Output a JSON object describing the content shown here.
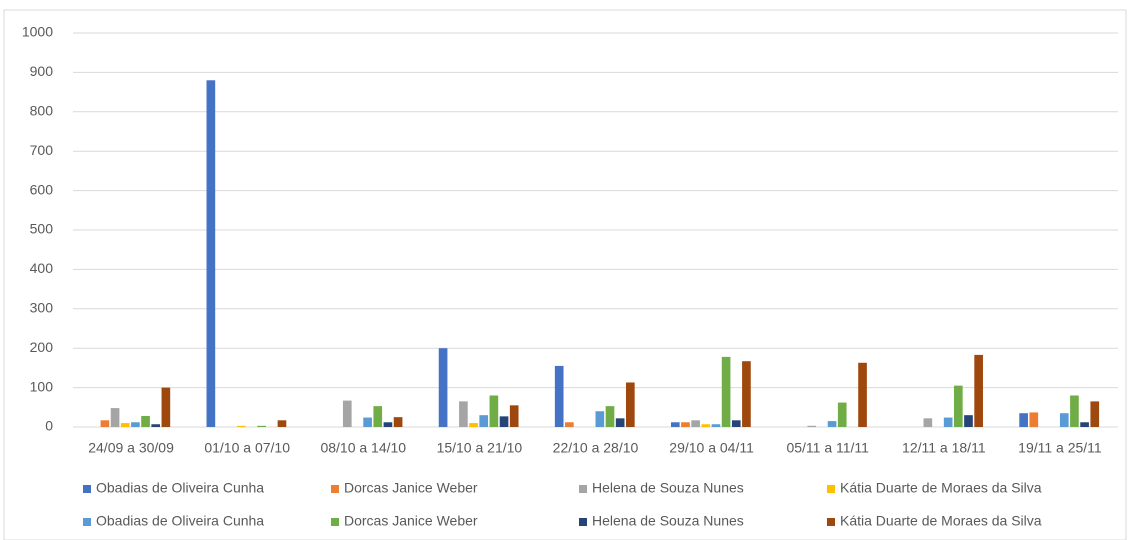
{
  "chart_data": {
    "type": "bar",
    "categories": [
      "24/09 a 30/09",
      "01/10 a 07/10",
      "08/10 a 14/10",
      "15/10 a 21/10",
      "22/10 a 28/10",
      "29/10 a 04/11",
      "05/11 a 11/11",
      "12/11 a 18/11",
      "19/11 a 25/11"
    ],
    "series": [
      {
        "name": "Obadias de Oliveira Cunha",
        "color": "#4472c4",
        "values": [
          0,
          880,
          0,
          200,
          155,
          12,
          0,
          0,
          35
        ]
      },
      {
        "name": "Dorcas Janice Weber",
        "color": "#ed7d31",
        "values": [
          17,
          0,
          0,
          0,
          12,
          12,
          0,
          0,
          37
        ]
      },
      {
        "name": "Helena de Souza Nunes",
        "color": "#a5a5a5",
        "values": [
          48,
          0,
          67,
          65,
          0,
          17,
          3,
          22,
          0
        ]
      },
      {
        "name": "Kátia Duarte de Moraes da Silva",
        "color": "#ffc000",
        "values": [
          10,
          3,
          0,
          10,
          0,
          7,
          0,
          0,
          0
        ]
      },
      {
        "name": "Obadias de Oliveira Cunha",
        "color": "#5b9bd5",
        "values": [
          12,
          0,
          24,
          30,
          40,
          7,
          15,
          24,
          35
        ]
      },
      {
        "name": "Dorcas Janice Weber",
        "color": "#70ad47",
        "values": [
          28,
          3,
          53,
          80,
          53,
          178,
          62,
          105,
          80
        ]
      },
      {
        "name": "Helena de Souza Nunes",
        "color": "#264478",
        "values": [
          7,
          0,
          12,
          27,
          22,
          17,
          0,
          30,
          12
        ]
      },
      {
        "name": "Kátia Duarte de Moraes da Silva",
        "color": "#9e480e",
        "values": [
          100,
          17,
          25,
          55,
          113,
          167,
          163,
          183,
          65
        ]
      }
    ],
    "ylim": [
      0,
      1000
    ],
    "yticks": [
      0,
      100,
      200,
      300,
      400,
      500,
      600,
      700,
      800,
      900,
      1000
    ],
    "grid": true,
    "legend": "bottom"
  }
}
